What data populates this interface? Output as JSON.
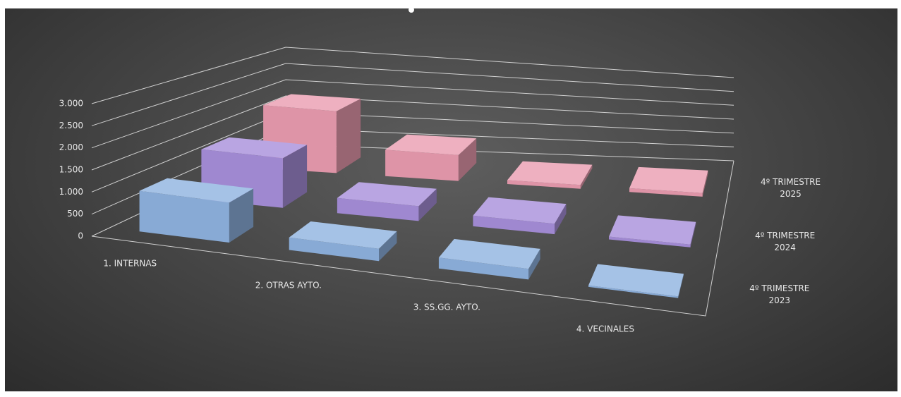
{
  "chart_data": {
    "type": "bar3d",
    "categories": [
      "1. INTERNAS",
      "2. OTRAS AYTO.",
      "3. SS.GG. AYTO.",
      "4. VECINALES"
    ],
    "series": [
      {
        "name": "4º TRIMESTRE 2023",
        "color": "#8fb3e0",
        "values": [
          950,
          300,
          270,
          40
        ]
      },
      {
        "name": "4º TRIMESTRE 2024",
        "color": "#a78fdb",
        "values": [
          1300,
          400,
          290,
          80
        ]
      },
      {
        "name": "4º TRIMESTRE 2025",
        "color": "#ea9cb0",
        "values": [
          1800,
          780,
          120,
          120
        ]
      }
    ],
    "ylim": [
      0,
      3000
    ],
    "yticks": [
      0,
      500,
      {
        "value": 1000,
        "label": "1.000"
      },
      {
        "value": 1500,
        "label": "1.500"
      },
      {
        "value": 2000,
        "label": "2.000"
      },
      {
        "value": 2500,
        "label": "2.500"
      },
      {
        "value": 3000,
        "label": "3.000"
      }
    ],
    "grid": true
  }
}
